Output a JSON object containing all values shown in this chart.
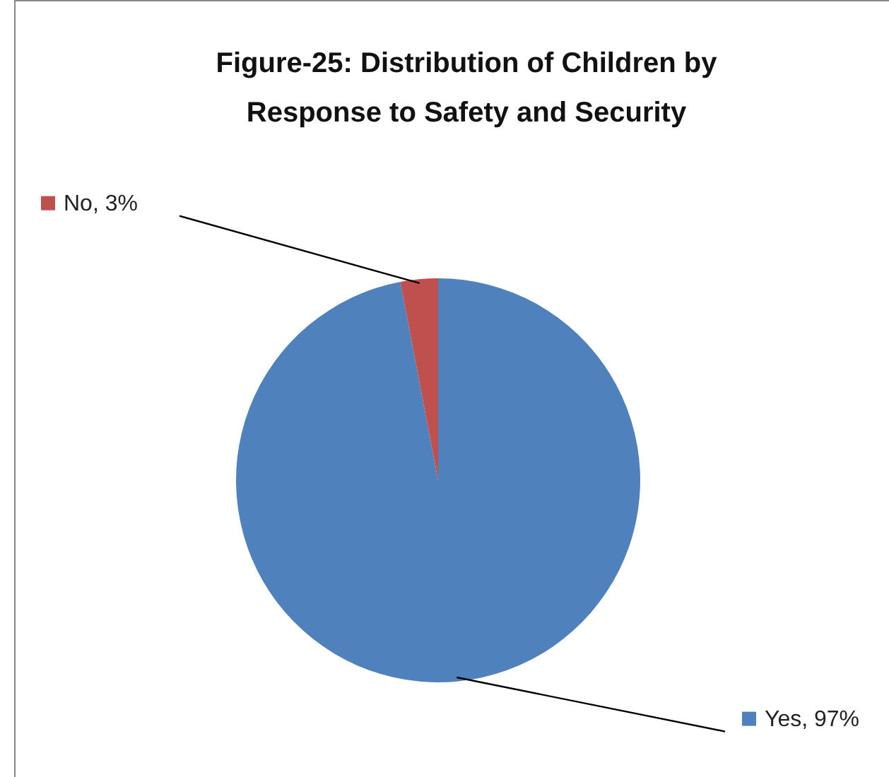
{
  "chart_data": {
    "type": "pie",
    "title": "Figure-25: Distribution of Children by Response to Safety and Security",
    "categories": [
      "Yes",
      "No"
    ],
    "values": [
      97,
      3
    ],
    "colors": [
      "#4f81bd",
      "#c0504d"
    ],
    "value_labels": [
      ", 97%",
      ", 3%"
    ],
    "legend": "left"
  }
}
